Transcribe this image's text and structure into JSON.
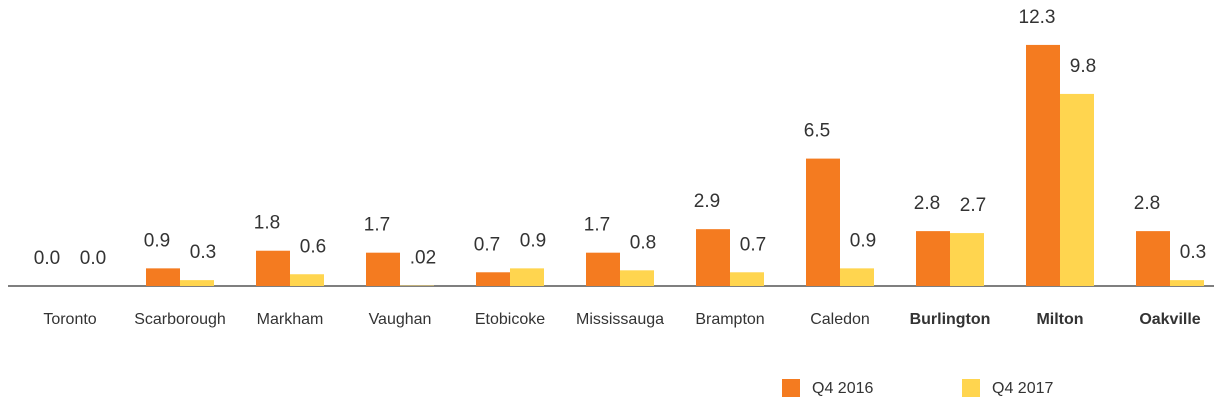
{
  "chart_data": {
    "type": "bar",
    "categories": [
      "Toronto",
      "Scarborough",
      "Markham",
      "Vaughan",
      "Etobicoke",
      "Mississauga",
      "Brampton",
      "Caledon",
      "Burlington",
      "Milton",
      "Oakville"
    ],
    "bold": [
      false,
      false,
      false,
      false,
      false,
      false,
      false,
      false,
      true,
      true,
      true
    ],
    "series": [
      {
        "name": "Q4 2016",
        "color": "#f47b20",
        "values": [
          0,
          0.9,
          1.8,
          1.7,
          0.7,
          1.7,
          2.9,
          6.5,
          2.8,
          12.3,
          2.8
        ],
        "value_labels": [
          "0.0",
          "0.9",
          "1.8",
          "1.7",
          "0.7",
          "1.7",
          "2.9",
          "6.5",
          "2.8",
          "12.3",
          "2.8"
        ]
      },
      {
        "name": "Q4 2017",
        "color": "#ffd54f",
        "values": [
          0,
          0.3,
          0.6,
          0.02,
          0.9,
          0.8,
          0.7,
          0.9,
          2.7,
          9.8,
          0.3
        ],
        "value_labels": [
          "0.0",
          "0.3",
          "0.6",
          ".02",
          "0.9",
          "0.8",
          "0.7",
          "0.9",
          "2.7",
          "9.8",
          "0.3"
        ]
      }
    ]
  }
}
